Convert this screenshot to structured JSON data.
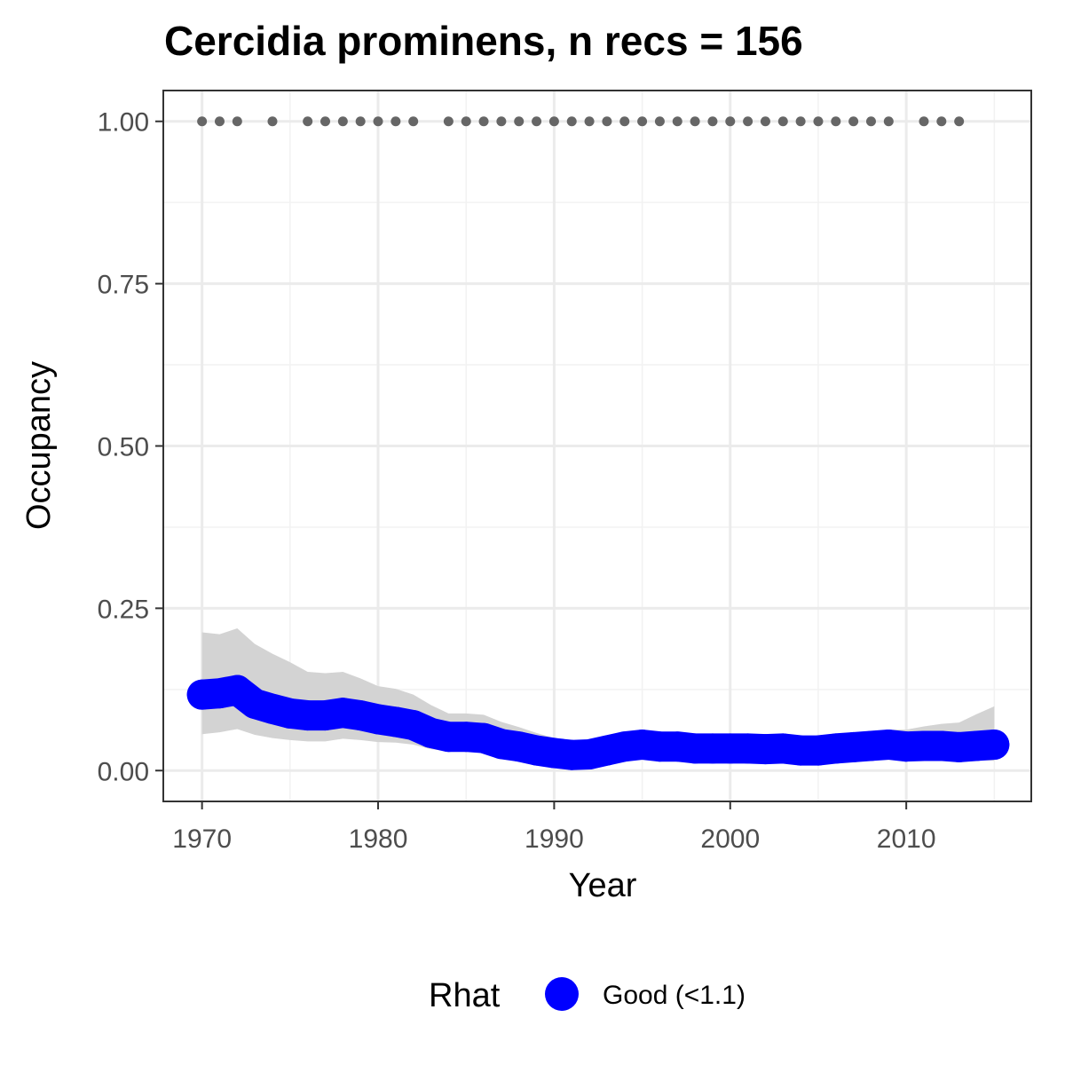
{
  "chart_data": {
    "type": "line",
    "title": "Cercidia prominens, n recs = 156",
    "xlabel": "Year",
    "ylabel": "Occupancy",
    "xlim": [
      1967.8,
      2017.1
    ],
    "ylim": [
      -0.0475,
      1.0475
    ],
    "x_ticks": [
      1970,
      1980,
      1990,
      2000,
      2010
    ],
    "x_tick_labels": [
      "1970",
      "1980",
      "1990",
      "2000",
      "2010"
    ],
    "y_ticks": [
      0,
      0.25,
      0.5,
      0.75,
      1.0
    ],
    "y_tick_labels": [
      "0.00",
      "0.25",
      "0.50",
      "0.75",
      "1.00"
    ],
    "grid": true,
    "series": [
      {
        "name": "Good (<1.1)",
        "color": "#0000ff",
        "x": [
          1970,
          1971,
          1972,
          1973,
          1974,
          1975,
          1976,
          1977,
          1978,
          1979,
          1980,
          1981,
          1982,
          1983,
          1984,
          1985,
          1986,
          1987,
          1988,
          1989,
          1990,
          1991,
          1992,
          1993,
          1994,
          1995,
          1996,
          1997,
          1998,
          1999,
          2000,
          2001,
          2002,
          2003,
          2004,
          2005,
          2006,
          2007,
          2008,
          2009,
          2010,
          2011,
          2012,
          2013,
          2014,
          2015
        ],
        "y": [
          0.117,
          0.119,
          0.124,
          0.103,
          0.095,
          0.088,
          0.085,
          0.085,
          0.089,
          0.085,
          0.079,
          0.075,
          0.07,
          0.058,
          0.052,
          0.052,
          0.05,
          0.041,
          0.037,
          0.031,
          0.027,
          0.024,
          0.025,
          0.031,
          0.037,
          0.04,
          0.037,
          0.037,
          0.034,
          0.034,
          0.034,
          0.034,
          0.033,
          0.034,
          0.031,
          0.031,
          0.034,
          0.036,
          0.038,
          0.04,
          0.037,
          0.038,
          0.038,
          0.036,
          0.038,
          0.04
        ]
      }
    ],
    "ribbon": {
      "color": "#d3d3d3",
      "x": [
        1970,
        1971,
        1972,
        1973,
        1974,
        1975,
        1976,
        1977,
        1978,
        1979,
        1980,
        1981,
        1982,
        1983,
        1984,
        1985,
        1986,
        1987,
        1988,
        1989,
        1990,
        1991,
        1992,
        1993,
        1994,
        1995,
        1996,
        1997,
        1998,
        1999,
        2000,
        2001,
        2002,
        2003,
        2004,
        2005,
        2006,
        2007,
        2008,
        2009,
        2010,
        2011,
        2012,
        2013,
        2014,
        2015
      ],
      "upper": [
        0.213,
        0.21,
        0.219,
        0.195,
        0.18,
        0.167,
        0.152,
        0.15,
        0.152,
        0.142,
        0.13,
        0.126,
        0.117,
        0.101,
        0.088,
        0.088,
        0.086,
        0.075,
        0.067,
        0.058,
        0.05,
        0.046,
        0.046,
        0.052,
        0.057,
        0.06,
        0.057,
        0.056,
        0.052,
        0.052,
        0.052,
        0.052,
        0.051,
        0.052,
        0.05,
        0.05,
        0.054,
        0.057,
        0.06,
        0.063,
        0.063,
        0.068,
        0.072,
        0.074,
        0.087,
        0.099
      ],
      "lower": [
        0.056,
        0.059,
        0.064,
        0.055,
        0.05,
        0.047,
        0.045,
        0.045,
        0.049,
        0.047,
        0.044,
        0.043,
        0.04,
        0.033,
        0.03,
        0.03,
        0.029,
        0.024,
        0.022,
        0.019,
        0.017,
        0.015,
        0.016,
        0.019,
        0.022,
        0.024,
        0.022,
        0.022,
        0.021,
        0.021,
        0.021,
        0.021,
        0.02,
        0.021,
        0.019,
        0.019,
        0.021,
        0.022,
        0.023,
        0.024,
        0.021,
        0.02,
        0.019,
        0.017,
        0.016,
        0.015
      ]
    },
    "records": {
      "color": "#666666",
      "y": 1.0,
      "x": [
        1970,
        1971,
        1972,
        1974,
        1976,
        1977,
        1978,
        1979,
        1980,
        1981,
        1982,
        1984,
        1985,
        1986,
        1987,
        1988,
        1989,
        1990,
        1991,
        1992,
        1993,
        1994,
        1995,
        1996,
        1997,
        1998,
        1999,
        2000,
        2001,
        2002,
        2003,
        2004,
        2005,
        2006,
        2007,
        2008,
        2009,
        2011,
        2012,
        2013
      ]
    },
    "legend": {
      "title": "Rhat",
      "placement": "bottom",
      "entries": [
        {
          "label": "Good (<1.1)",
          "color": "#0000ff"
        }
      ]
    }
  }
}
